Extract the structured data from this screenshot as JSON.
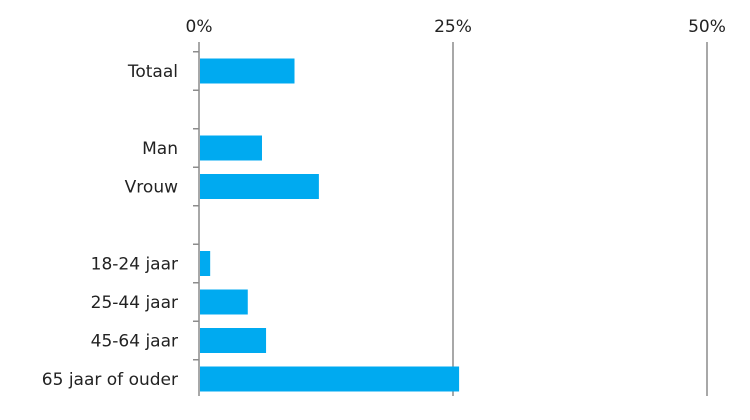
{
  "chart_data": {
    "type": "bar",
    "orientation": "horizontal",
    "title": "",
    "xlabel": "",
    "ylabel": "",
    "xlim": [
      0,
      50
    ],
    "xticks": [
      0,
      25,
      50
    ],
    "xtick_labels": [
      "0%",
      "25%",
      "50%"
    ],
    "xaxis_position": "top",
    "grid": true,
    "legend": "none",
    "bar_color": "#00aaf0",
    "grid_color": "#8c8c8c",
    "rows": [
      {
        "label": "Totaal",
        "value": 9.4
      },
      {
        "label": "",
        "value": null
      },
      {
        "label": "Man",
        "value": 6.2
      },
      {
        "label": "Vrouw",
        "value": 11.8
      },
      {
        "label": "",
        "value": null
      },
      {
        "label": "18-24 jaar",
        "value": 1.1
      },
      {
        "label": "25-44 jaar",
        "value": 4.8
      },
      {
        "label": "45-64 jaar",
        "value": 6.6
      },
      {
        "label": "65 jaar of ouder",
        "value": 25.6
      }
    ]
  }
}
